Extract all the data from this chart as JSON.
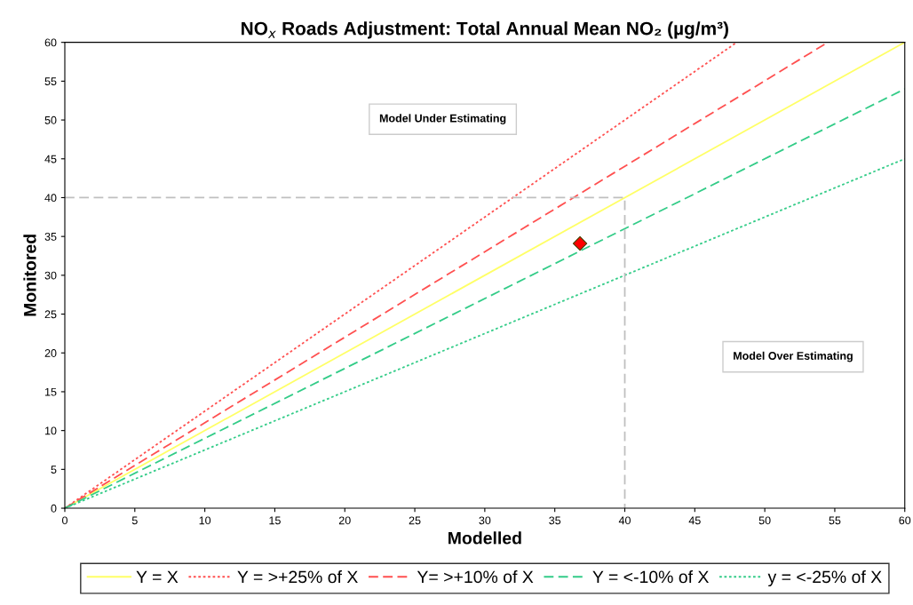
{
  "chart_data": {
    "type": "line",
    "title": "NO$_{x}$ Roads Adjustment: Total Annual Mean NO₂ (µg/m³)",
    "xlabel": "Modelled",
    "ylabel": "Monitored",
    "xlim": [
      0,
      60
    ],
    "ylim": [
      0,
      60
    ],
    "xticks": [
      0,
      5,
      10,
      15,
      20,
      25,
      30,
      35,
      40,
      45,
      50,
      55,
      60
    ],
    "yticks": [
      0,
      5,
      10,
      15,
      20,
      25,
      30,
      35,
      40,
      45,
      50,
      55,
      60
    ],
    "grid": false,
    "legend": "bottom",
    "marker": "none",
    "series": [
      {
        "name": "Y = X",
        "color": "#ffff66",
        "line_style": "solid",
        "x": [
          0,
          60
        ],
        "values": [
          0,
          60
        ]
      },
      {
        "name": "Y = >+25% of X",
        "color": "#ff5050",
        "line_style": "dotted",
        "x": [
          0,
          48
        ],
        "values": [
          0,
          60
        ]
      },
      {
        "name": "Y= >+10% of X",
        "color": "#ff5050",
        "line_style": "dashed",
        "x": [
          0,
          54.5
        ],
        "values": [
          0,
          60
        ]
      },
      {
        "name": "Y = <-10% of X",
        "color": "#33cc88",
        "line_style": "dashed",
        "x": [
          0,
          60
        ],
        "values": [
          0,
          54
        ]
      },
      {
        "name": "y = <-25% of X",
        "color": "#33cc88",
        "line_style": "dotted",
        "x": [
          0,
          60
        ],
        "values": [
          0,
          45
        ]
      },
      {
        "color": "#bfbfbf",
        "line_style": "dashed",
        "x": [
          0,
          40,
          40
        ],
        "values": [
          40,
          40,
          0
        ]
      },
      {
        "type": "scatter",
        "color": "#ff0000",
        "marker": "diamond",
        "x": [
          36.8
        ],
        "values": [
          34.1
        ]
      }
    ],
    "annotations": [
      "Model Under Estimating",
      "Model Over Estimating"
    ]
  }
}
